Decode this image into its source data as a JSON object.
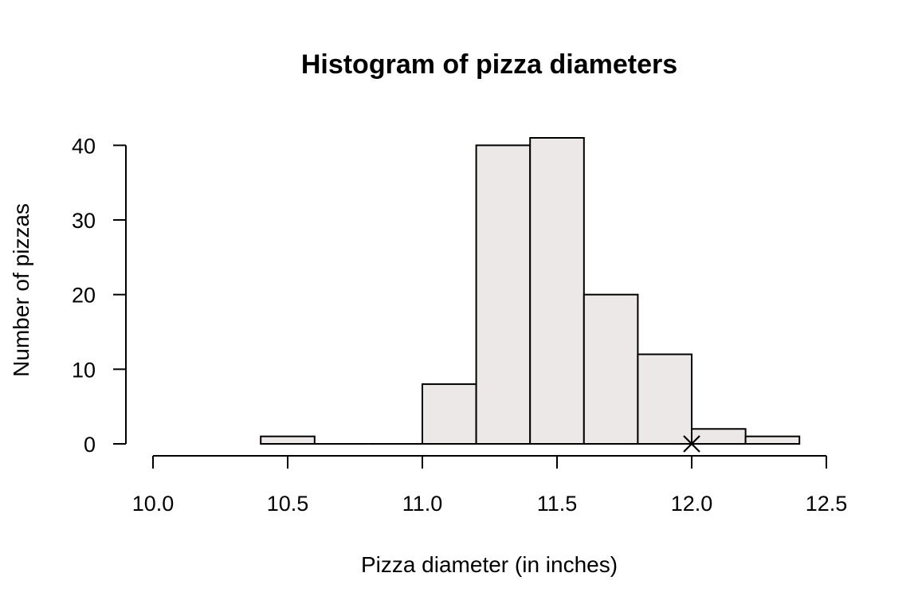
{
  "chart_data": {
    "type": "bar",
    "subtype": "histogram",
    "title": "Histogram of pizza diameters",
    "xlabel": "Pizza diameter (in inches)",
    "ylabel": "Number of pizzas",
    "xlim": [
      10.0,
      12.5
    ],
    "ylim": [
      0,
      41
    ],
    "x_ticks": [
      "10.0",
      "10.5",
      "11.0",
      "11.5",
      "12.0",
      "12.5"
    ],
    "y_ticks": [
      "0",
      "10",
      "20",
      "30",
      "40"
    ],
    "bins": [
      {
        "start": 10.4,
        "end": 10.6,
        "count": 1
      },
      {
        "start": 10.6,
        "end": 10.8,
        "count": 0
      },
      {
        "start": 10.8,
        "end": 11.0,
        "count": 0
      },
      {
        "start": 11.0,
        "end": 11.2,
        "count": 8
      },
      {
        "start": 11.2,
        "end": 11.4,
        "count": 40
      },
      {
        "start": 11.4,
        "end": 11.6,
        "count": 41
      },
      {
        "start": 11.6,
        "end": 11.8,
        "count": 20
      },
      {
        "start": 11.8,
        "end": 12.0,
        "count": 12
      },
      {
        "start": 12.0,
        "end": 12.2,
        "count": 2
      },
      {
        "start": 12.2,
        "end": 12.4,
        "count": 1
      }
    ],
    "marker": {
      "x": 12.0,
      "y": 0,
      "symbol": "x"
    },
    "bar_color": "#ede8e8",
    "grid": false,
    "legend": "none"
  }
}
